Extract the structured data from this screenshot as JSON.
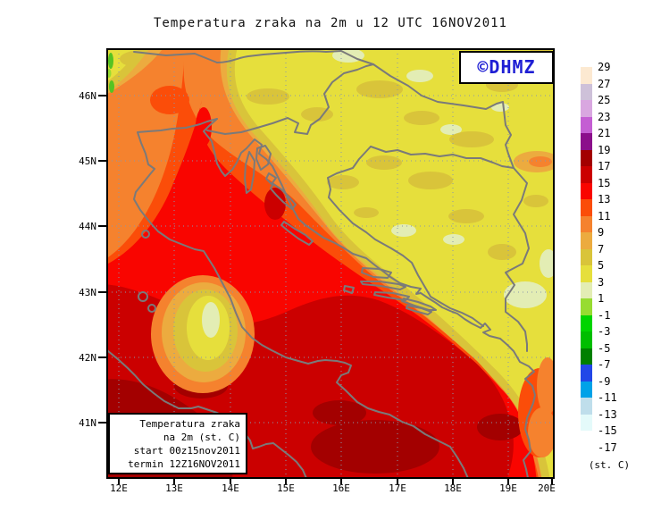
{
  "title": "Temperatura zraka na 2m u 12 UTC 16NOV2011",
  "watermark": {
    "text": "©DHMZ",
    "color": "#1F1FD4"
  },
  "info_box": {
    "lines": [
      "Temperatura zraka",
      "na 2m (st. C)",
      "start 00z15nov2011",
      "termin 12Z16NOV2011"
    ]
  },
  "axes": {
    "lat_labels": [
      "46N",
      "45N",
      "44N",
      "43N",
      "42N",
      "41N"
    ],
    "lon_labels": [
      "12E",
      "13E",
      "14E",
      "15E",
      "16E",
      "17E",
      "18E",
      "19E",
      "20E"
    ]
  },
  "colorbar": {
    "unit": "(st. C)",
    "labels": [
      "29",
      "27",
      "25",
      "23",
      "21",
      "19",
      "17",
      "15",
      "13",
      "11",
      "9",
      "7",
      "5",
      "3",
      "1",
      "-1",
      "-3",
      "-5",
      "-7",
      "-9",
      "-11",
      "-13",
      "-15",
      "-17"
    ],
    "colors": [
      "#FCE9D1",
      "#CEC1D9",
      "#D9A7E0",
      "#C45ED3",
      "#8B0E8B",
      "#A30000",
      "#CB0000",
      "#F90500",
      "#FB4D09",
      "#F5822E",
      "#ECAB3F",
      "#D9C43A",
      "#E6DF3C",
      "#E3EDB4",
      "#97DC31",
      "#00D500",
      "#00BE00",
      "#008000",
      "#2247E8",
      "#00A2E8",
      "#BFDEEB",
      "#E4FAFA",
      "#FFFFFF"
    ]
  },
  "map": {
    "palette": {
      "t19": "#A30000",
      "t17": "#CB0000",
      "t15": "#F90500",
      "t13": "#FB4D09",
      "t11": "#F5822E",
      "t9": "#ECAB3F",
      "t7": "#D9C43A",
      "t5": "#E6DF3C",
      "t3": "#E3EDB4",
      "t1": "#97DC31",
      "tm1": "#00D500"
    },
    "line_color": "#7A7A7A",
    "grid_color": "#8897AD",
    "frame_color": "#000000"
  }
}
